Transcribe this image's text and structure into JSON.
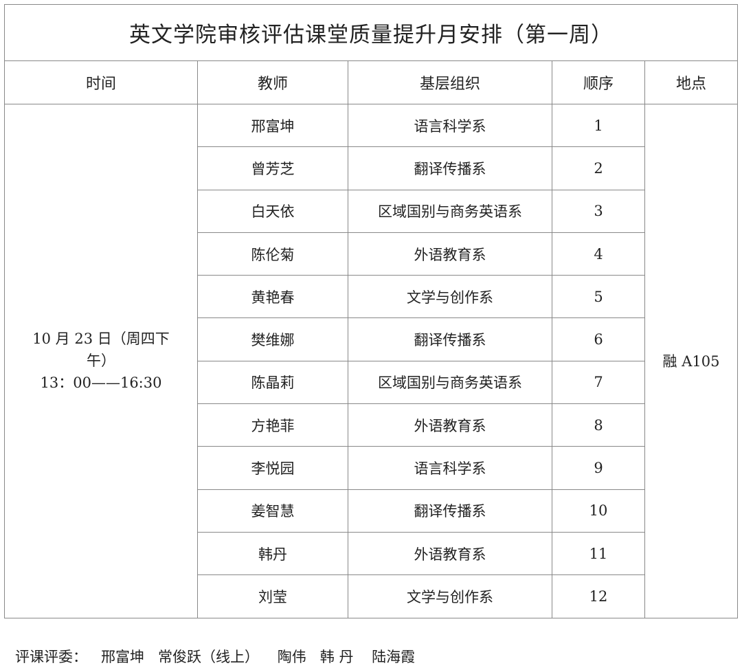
{
  "title": "英文学院审核评估课堂质量提升月安排（第一周）",
  "headers": [
    "时间",
    "教师",
    "基层组织",
    "顺序",
    "地点"
  ],
  "time": {
    "line1": "10 月 23 日（周四下午）",
    "line2": "13：00——16:30"
  },
  "location": "融 A105",
  "rows": [
    {
      "teacher": "邢富坤",
      "org": "语言科学系",
      "order": "1"
    },
    {
      "teacher": "曾芳芝",
      "org": "翻译传播系",
      "order": "2"
    },
    {
      "teacher": "白天依",
      "org": "区域国别与商务英语系",
      "order": "3"
    },
    {
      "teacher": "陈伦菊",
      "org": "外语教育系",
      "order": "4"
    },
    {
      "teacher": "黄艳春",
      "org": "文学与创作系",
      "order": "5"
    },
    {
      "teacher": "樊维娜",
      "org": "翻译传播系",
      "order": "6"
    },
    {
      "teacher": "陈晶莉",
      "org": "区域国别与商务英语系",
      "order": "7"
    },
    {
      "teacher": "方艳菲",
      "org": "外语教育系",
      "order": "8"
    },
    {
      "teacher": "李悦园",
      "org": "语言科学系",
      "order": "9"
    },
    {
      "teacher": "姜智慧",
      "org": "翻译传播系",
      "order": "10"
    },
    {
      "teacher": "韩丹",
      "org": "外语教育系",
      "order": "11"
    },
    {
      "teacher": "刘莹",
      "org": "文学与创作系",
      "order": "12"
    }
  ],
  "footer": "评课评委：   邢富坤   常俊跃（线上）    陶伟   韩 丹    陆海霞"
}
